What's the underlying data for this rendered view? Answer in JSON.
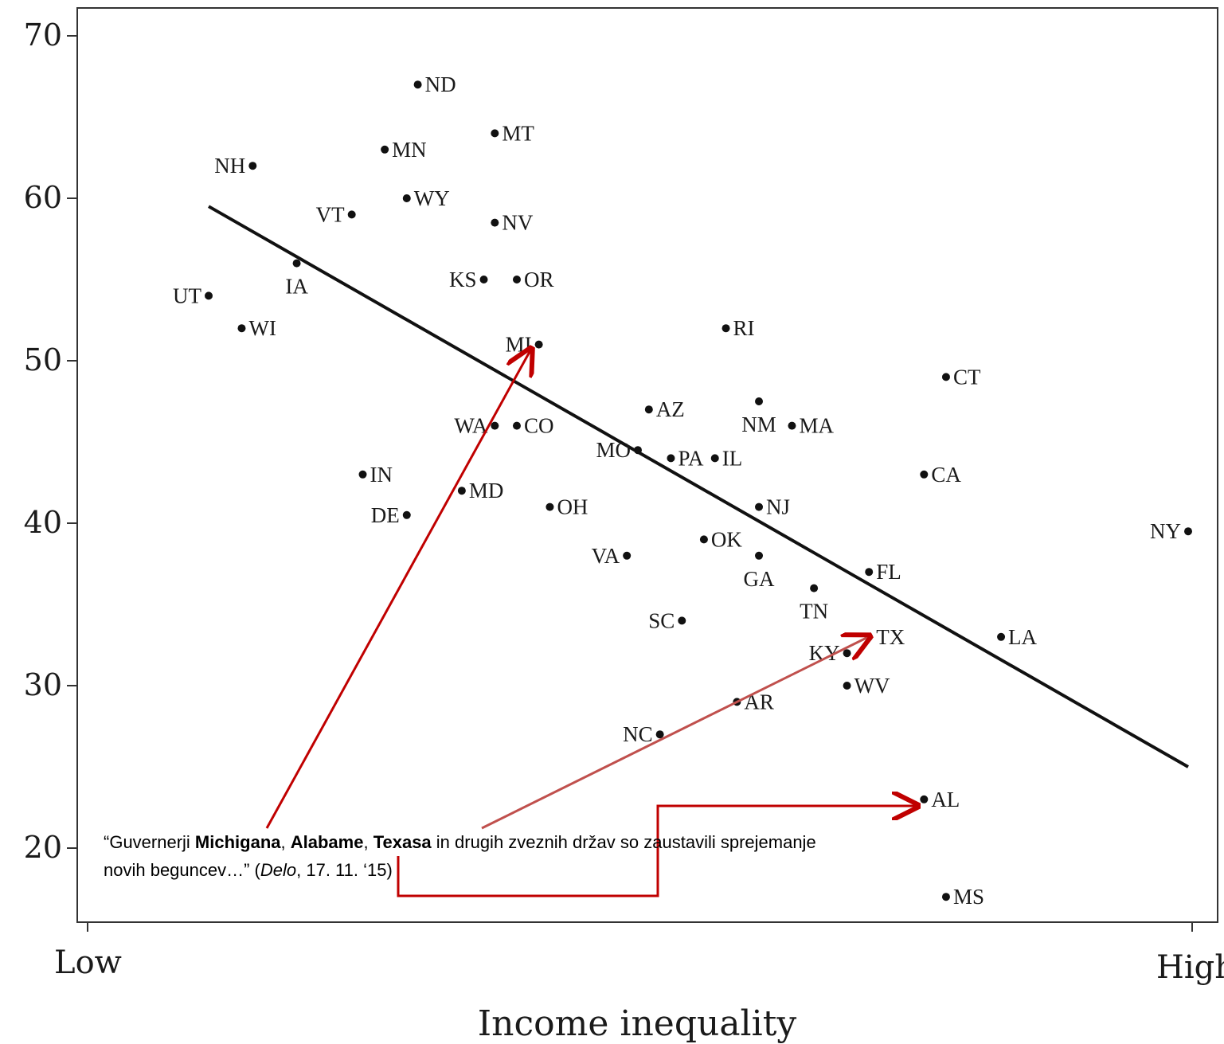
{
  "chart_data": {
    "type": "scatter",
    "xlabel": "Income inequality",
    "x_tick_labels": [
      "Low",
      "High"
    ],
    "ylim": [
      15,
      72
    ],
    "y_ticks": [
      20,
      30,
      40,
      50,
      60,
      70
    ],
    "points": [
      {
        "label": "ND",
        "x": 0.3,
        "y": 67.0
      },
      {
        "label": "MT",
        "x": 0.37,
        "y": 64.0
      },
      {
        "label": "MN",
        "x": 0.27,
        "y": 63.0
      },
      {
        "label": "NH",
        "x": 0.15,
        "y": 62.0
      },
      {
        "label": "WY",
        "x": 0.29,
        "y": 60.0
      },
      {
        "label": "VT",
        "x": 0.24,
        "y": 59.0
      },
      {
        "label": "NV",
        "x": 0.37,
        "y": 58.5
      },
      {
        "label": "IA",
        "x": 0.19,
        "y": 56.0
      },
      {
        "label": "KS",
        "x": 0.36,
        "y": 55.0
      },
      {
        "label": "OR",
        "x": 0.39,
        "y": 55.0
      },
      {
        "label": "UT",
        "x": 0.11,
        "y": 54.0
      },
      {
        "label": "WI",
        "x": 0.14,
        "y": 52.0
      },
      {
        "label": "RI",
        "x": 0.58,
        "y": 52.0
      },
      {
        "label": "MI",
        "x": 0.41,
        "y": 51.0
      },
      {
        "label": "CT",
        "x": 0.78,
        "y": 49.0
      },
      {
        "label": "NM",
        "x": 0.61,
        "y": 47.5
      },
      {
        "label": "AZ",
        "x": 0.51,
        "y": 47.0
      },
      {
        "label": "WA",
        "x": 0.37,
        "y": 46.0
      },
      {
        "label": "CO",
        "x": 0.39,
        "y": 46.0
      },
      {
        "label": "MA",
        "x": 0.64,
        "y": 46.0
      },
      {
        "label": "MO",
        "x": 0.5,
        "y": 44.5
      },
      {
        "label": "PA",
        "x": 0.53,
        "y": 44.0
      },
      {
        "label": "IL",
        "x": 0.57,
        "y": 44.0
      },
      {
        "label": "IN",
        "x": 0.25,
        "y": 43.0
      },
      {
        "label": "CA",
        "x": 0.76,
        "y": 43.0
      },
      {
        "label": "MD",
        "x": 0.34,
        "y": 42.0
      },
      {
        "label": "OH",
        "x": 0.42,
        "y": 41.0
      },
      {
        "label": "NJ",
        "x": 0.61,
        "y": 41.0
      },
      {
        "label": "DE",
        "x": 0.29,
        "y": 40.5
      },
      {
        "label": "NY",
        "x": 1.0,
        "y": 39.5
      },
      {
        "label": "OK",
        "x": 0.56,
        "y": 39.0
      },
      {
        "label": "VA",
        "x": 0.49,
        "y": 38.0
      },
      {
        "label": "GA",
        "x": 0.61,
        "y": 38.0
      },
      {
        "label": "FL",
        "x": 0.71,
        "y": 37.0
      },
      {
        "label": "TN",
        "x": 0.66,
        "y": 36.0
      },
      {
        "label": "SC",
        "x": 0.54,
        "y": 34.0
      },
      {
        "label": "TX",
        "x": 0.71,
        "y": 33.0
      },
      {
        "label": "LA",
        "x": 0.83,
        "y": 33.0
      },
      {
        "label": "KY",
        "x": 0.69,
        "y": 32.0
      },
      {
        "label": "WV",
        "x": 0.69,
        "y": 30.0
      },
      {
        "label": "AR",
        "x": 0.59,
        "y": 29.0
      },
      {
        "label": "NC",
        "x": 0.52,
        "y": 27.0
      },
      {
        "label": "AL",
        "x": 0.76,
        "y": 23.0
      },
      {
        "label": "MS",
        "x": 0.78,
        "y": 17.0
      }
    ],
    "trend_line": {
      "x": [
        0.11,
        1.0
      ],
      "y": [
        59.5,
        25.0
      ]
    },
    "colors": {
      "points": "#111111",
      "trend": "#111111",
      "annotation": "#c00000"
    }
  },
  "annotation": {
    "quote_open": "“Guvernerji ",
    "michigan": "Michigana",
    "sep1": ", ",
    "alabama": "Alabame",
    "sep2": ", ",
    "texas": "Texasa",
    "rest": " in drugih zveznih držav so zaustavili sprejemanje novih beguncev…” (",
    "source": "Delo",
    "date": ", 17. 11. ‘15)"
  }
}
